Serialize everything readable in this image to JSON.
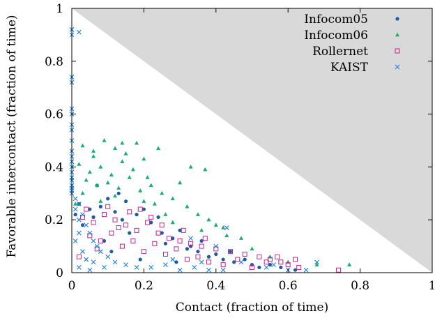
{
  "chart_data": {
    "type": "scatter",
    "xlabel": "Contact (fraction of time)",
    "ylabel": "Favorable intercontact (fraction of time)",
    "xlim": [
      0,
      1
    ],
    "ylim": [
      0,
      1
    ],
    "x_ticks": [
      "0",
      "0.2",
      "0.4",
      "0.6",
      "0.8",
      "1"
    ],
    "y_ticks": [
      "0",
      "0.2",
      "0.4",
      "0.6",
      "0.8",
      "1"
    ],
    "infeasible_region": "x + y > 1 (shaded gray)",
    "legend_position": "top-right",
    "series": [
      {
        "name": "Infocom05",
        "marker": "circle",
        "color": "#1f5aa6",
        "points": [
          [
            0.02,
            0.26
          ],
          [
            0.05,
            0.24
          ],
          [
            0.08,
            0.25
          ],
          [
            0.12,
            0.23
          ],
          [
            0.15,
            0.27
          ],
          [
            0.18,
            0.22
          ],
          [
            0.22,
            0.19
          ],
          [
            0.25,
            0.15
          ],
          [
            0.28,
            0.13
          ],
          [
            0.3,
            0.16
          ],
          [
            0.33,
            0.1
          ],
          [
            0.35,
            0.08
          ],
          [
            0.38,
            0.06
          ],
          [
            0.42,
            0.05
          ],
          [
            0.45,
            0.04
          ],
          [
            0.5,
            0.03
          ],
          [
            0.55,
            0.03
          ],
          [
            0.58,
            0.02
          ],
          [
            0.62,
            0.01
          ],
          [
            0.1,
            0.28
          ],
          [
            0.06,
            0.21
          ],
          [
            0.14,
            0.2
          ],
          [
            0.2,
            0.24
          ],
          [
            0.03,
            0.18
          ],
          [
            0.26,
            0.11
          ],
          [
            0.32,
            0.09
          ],
          [
            0.4,
            0.07
          ],
          [
            0.48,
            0.05
          ],
          [
            0.16,
            0.15
          ],
          [
            0.09,
            0.12
          ],
          [
            0.24,
            0.21
          ],
          [
            0.13,
            0.3
          ],
          [
            0.07,
            0.33
          ],
          [
            0.36,
            0.12
          ],
          [
            0.44,
            0.08
          ],
          [
            0.52,
            0.02
          ],
          [
            0.19,
            0.05
          ],
          [
            0.11,
            0.08
          ],
          [
            0.29,
            0.04
          ],
          [
            0.01,
            0.22
          ]
        ]
      },
      {
        "name": "Infocom06",
        "marker": "triangle",
        "color": "#17b069",
        "points": [
          [
            0.03,
            0.48
          ],
          [
            0.06,
            0.46
          ],
          [
            0.09,
            0.5
          ],
          [
            0.12,
            0.47
          ],
          [
            0.15,
            0.45
          ],
          [
            0.18,
            0.49
          ],
          [
            0.2,
            0.43
          ],
          [
            0.24,
            0.47
          ],
          [
            0.02,
            0.41
          ],
          [
            0.05,
            0.38
          ],
          [
            0.08,
            0.4
          ],
          [
            0.11,
            0.37
          ],
          [
            0.14,
            0.42
          ],
          [
            0.17,
            0.39
          ],
          [
            0.21,
            0.36
          ],
          [
            0.04,
            0.35
          ],
          [
            0.07,
            0.33
          ],
          [
            0.1,
            0.34
          ],
          [
            0.13,
            0.32
          ],
          [
            0.16,
            0.36
          ],
          [
            0.19,
            0.31
          ],
          [
            0.22,
            0.33
          ],
          [
            0.25,
            0.3
          ],
          [
            0.28,
            0.28
          ],
          [
            0.32,
            0.25
          ],
          [
            0.35,
            0.22
          ],
          [
            0.38,
            0.2
          ],
          [
            0.42,
            0.17
          ],
          [
            0.47,
            0.13
          ],
          [
            0.5,
            0.09
          ],
          [
            0.55,
            0.06
          ],
          [
            0.6,
            0.04
          ],
          [
            0.68,
            0.03
          ],
          [
            0.77,
            0.03
          ],
          [
            0.33,
            0.4
          ],
          [
            0.37,
            0.39
          ],
          [
            0.3,
            0.34
          ],
          [
            0.26,
            0.22
          ],
          [
            0.23,
            0.26
          ],
          [
            0.03,
            0.3
          ],
          [
            0.43,
            0.14
          ],
          [
            0.4,
            0.18
          ],
          [
            0.36,
            0.16
          ],
          [
            0.28,
            0.19
          ],
          [
            0.2,
            0.27
          ],
          [
            0.12,
            0.29
          ],
          [
            0.08,
            0.27
          ],
          [
            0.01,
            0.26
          ],
          [
            0.06,
            0.44
          ],
          [
            0.14,
            0.49
          ]
        ]
      },
      {
        "name": "Rollernet",
        "marker": "square",
        "color": "#c2248e",
        "points": [
          [
            0.03,
            0.21
          ],
          [
            0.06,
            0.19
          ],
          [
            0.09,
            0.22
          ],
          [
            0.12,
            0.2
          ],
          [
            0.15,
            0.18
          ],
          [
            0.18,
            0.16
          ],
          [
            0.21,
            0.19
          ],
          [
            0.24,
            0.15
          ],
          [
            0.27,
            0.13
          ],
          [
            0.3,
            0.12
          ],
          [
            0.33,
            0.11
          ],
          [
            0.36,
            0.1
          ],
          [
            0.4,
            0.09
          ],
          [
            0.44,
            0.08
          ],
          [
            0.48,
            0.07
          ],
          [
            0.52,
            0.06
          ],
          [
            0.55,
            0.05
          ],
          [
            0.58,
            0.04
          ],
          [
            0.6,
            0.03
          ],
          [
            0.63,
            0.02
          ],
          [
            0.74,
            0.01
          ],
          [
            0.05,
            0.14
          ],
          [
            0.08,
            0.12
          ],
          [
            0.11,
            0.15
          ],
          [
            0.14,
            0.1
          ],
          [
            0.17,
            0.12
          ],
          [
            0.2,
            0.08
          ],
          [
            0.23,
            0.11
          ],
          [
            0.26,
            0.07
          ],
          [
            0.29,
            0.09
          ],
          [
            0.32,
            0.05
          ],
          [
            0.35,
            0.06
          ],
          [
            0.38,
            0.04
          ],
          [
            0.42,
            0.03
          ],
          [
            0.46,
            0.05
          ],
          [
            0.5,
            0.02
          ],
          [
            0.54,
            0.04
          ],
          [
            0.57,
            0.06
          ],
          [
            0.62,
            0.05
          ],
          [
            0.04,
            0.24
          ],
          [
            0.1,
            0.25
          ],
          [
            0.16,
            0.23
          ],
          [
            0.22,
            0.21
          ],
          [
            0.19,
            0.24
          ],
          [
            0.13,
            0.17
          ],
          [
            0.07,
            0.09
          ],
          [
            0.02,
            0.06
          ],
          [
            0.25,
            0.18
          ],
          [
            0.31,
            0.16
          ],
          [
            0.37,
            0.13
          ]
        ]
      },
      {
        "name": "KAIST",
        "marker": "cross",
        "color": "#1a7fe0",
        "points": [
          [
            0.0,
            0.92
          ],
          [
            0.02,
            0.91
          ],
          [
            0.0,
            0.9
          ],
          [
            0.0,
            0.74
          ],
          [
            0.0,
            0.72
          ],
          [
            0.0,
            0.62
          ],
          [
            0.0,
            0.6
          ],
          [
            0.0,
            0.56
          ],
          [
            0.0,
            0.54
          ],
          [
            0.0,
            0.5
          ],
          [
            0.0,
            0.46
          ],
          [
            0.0,
            0.44
          ],
          [
            0.0,
            0.42
          ],
          [
            0.0,
            0.4
          ],
          [
            0.0,
            0.38
          ],
          [
            0.0,
            0.36
          ],
          [
            0.0,
            0.35
          ],
          [
            0.0,
            0.33
          ],
          [
            0.0,
            0.32
          ],
          [
            0.0,
            0.31
          ],
          [
            0.0,
            0.3
          ],
          [
            0.01,
            0.28
          ],
          [
            0.02,
            0.26
          ],
          [
            0.01,
            0.24
          ],
          [
            0.03,
            0.22
          ],
          [
            0.02,
            0.2
          ],
          [
            0.04,
            0.18
          ],
          [
            0.05,
            0.15
          ],
          [
            0.06,
            0.12
          ],
          [
            0.07,
            0.1
          ],
          [
            0.08,
            0.08
          ],
          [
            0.1,
            0.06
          ],
          [
            0.12,
            0.04
          ],
          [
            0.15,
            0.03
          ],
          [
            0.18,
            0.02
          ],
          [
            0.22,
            0.02
          ],
          [
            0.26,
            0.03
          ],
          [
            0.3,
            0.01
          ],
          [
            0.34,
            0.02
          ],
          [
            0.38,
            0.01
          ],
          [
            0.42,
            0.01
          ],
          [
            0.28,
            0.05
          ],
          [
            0.33,
            0.13
          ],
          [
            0.4,
            0.1
          ],
          [
            0.43,
            0.17
          ],
          [
            0.36,
            0.04
          ],
          [
            0.47,
            0.04
          ],
          [
            0.54,
            0.02
          ],
          [
            0.6,
            0.01
          ],
          [
            0.65,
            0.01
          ],
          [
            0.68,
            0.04
          ],
          [
            0.56,
            0.03
          ],
          [
            0.02,
            0.02
          ],
          [
            0.03,
            0.08
          ],
          [
            0.01,
            0.12
          ],
          [
            0.04,
            0.05
          ],
          [
            0.05,
            0.01
          ],
          [
            0.02,
            0.15
          ],
          [
            0.06,
            0.04
          ],
          [
            0.09,
            0.02
          ]
        ]
      }
    ]
  }
}
